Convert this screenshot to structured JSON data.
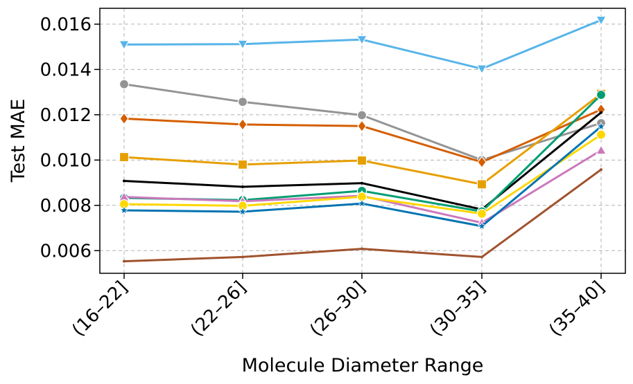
{
  "chart_data": {
    "type": "line",
    "title": "",
    "xlabel": "Molecule Diameter Range",
    "ylabel": "Test MAE",
    "categories": [
      "(16–22]",
      "(22–26]",
      "(26–30]",
      "(30–35]",
      "(35–40]"
    ],
    "ylim": [
      0.005,
      0.0167
    ],
    "yticks": [
      0.006,
      0.008,
      0.01,
      0.012,
      0.014,
      0.016
    ],
    "ytick_labels": [
      "0.006",
      "0.008",
      "0.010",
      "0.012",
      "0.014",
      "0.016"
    ],
    "grid": true,
    "legend": "none",
    "series": [
      {
        "name": "sky-blue",
        "color": "#56B4E9",
        "marker": "triangle-down",
        "values": [
          0.0151,
          0.01512,
          0.01532,
          0.01403,
          0.01618
        ]
      },
      {
        "name": "gray",
        "color": "#949494",
        "marker": "circle",
        "values": [
          0.01335,
          0.01257,
          0.01198,
          0.01,
          0.01163
        ]
      },
      {
        "name": "vermillion",
        "color": "#D55E00",
        "marker": "diamond",
        "values": [
          0.01183,
          0.01157,
          0.0115,
          0.00991,
          0.01223
        ]
      },
      {
        "name": "orange",
        "color": "#E69F00",
        "marker": "square",
        "values": [
          0.01013,
          0.0098,
          0.00998,
          0.00893,
          0.01292
        ]
      },
      {
        "name": "black",
        "color": "#000000",
        "marker": "none",
        "values": [
          0.00908,
          0.00882,
          0.00898,
          0.00782,
          0.0121
        ]
      },
      {
        "name": "green",
        "color": "#029E73",
        "marker": "circle",
        "values": [
          0.00833,
          0.00823,
          0.00864,
          0.00773,
          0.01288
        ]
      },
      {
        "name": "pink",
        "color": "#CC78BC",
        "marker": "triangle-up",
        "values": [
          0.00837,
          0.00818,
          0.00842,
          0.00723,
          0.01043
        ]
      },
      {
        "name": "yellow",
        "color": "#FFD700",
        "marker": "circle",
        "values": [
          0.00805,
          0.00798,
          0.00838,
          0.00763,
          0.01112
        ]
      },
      {
        "name": "blue",
        "color": "#0173B2",
        "marker": "star",
        "values": [
          0.00778,
          0.00772,
          0.00808,
          0.00708,
          0.01148
        ]
      },
      {
        "name": "brown",
        "color": "#A0522D",
        "marker": "none",
        "values": [
          0.00553,
          0.00572,
          0.00608,
          0.00572,
          0.00958
        ]
      }
    ]
  }
}
